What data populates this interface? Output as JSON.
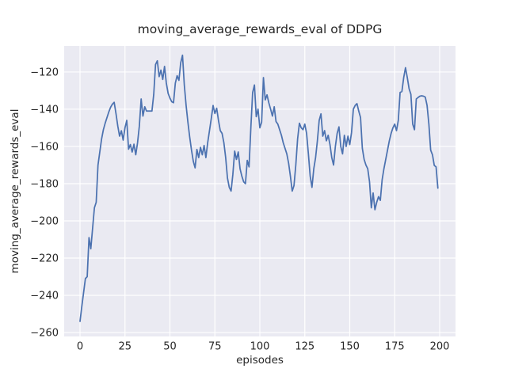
{
  "figure": {
    "title": "moving_average_rewards_eval of DDPG",
    "xlabel": "episodes",
    "ylabel": "moving_average_rewards_eval"
  },
  "chart_data": {
    "type": "line",
    "title": "moving_average_rewards_eval of DDPG",
    "xlabel": "episodes",
    "ylabel": "moving_average_rewards_eval",
    "legend": "none",
    "grid": true,
    "style": "seaborn-darkgrid",
    "background_color": "#eaeaf2",
    "grid_color": "#ffffff",
    "line_color": "#4c72b0",
    "text_color": "#262626",
    "xlim": [
      -8.81,
      208.81
    ],
    "ylim": [
      -262.1,
      -106.0
    ],
    "x_ticks": [
      0,
      25,
      50,
      75,
      100,
      125,
      150,
      175,
      200
    ],
    "x_tick_labels": [
      "0",
      "25",
      "50",
      "75",
      "100",
      "125",
      "150",
      "175",
      "200"
    ],
    "y_ticks": [
      -120,
      -140,
      -160,
      -180,
      -200,
      -220,
      -240,
      -260
    ],
    "y_tick_labels": [
      "−120",
      "−140",
      "−160",
      "−180",
      "−200",
      "−220",
      "−240",
      "−260"
    ],
    "series": [
      {
        "name": "moving_average_rewards_eval",
        "x_start": 0,
        "x_step": 1,
        "values": [
          -254,
          -246,
          -238.5,
          -231,
          -230,
          -209,
          -215,
          -204,
          -193,
          -190,
          -170,
          -163,
          -156,
          -151,
          -147.5,
          -144.5,
          -141.5,
          -139,
          -137.3,
          -136.3,
          -142.3,
          -149,
          -154.5,
          -151.6,
          -156.6,
          -150,
          -146,
          -161.5,
          -159,
          -163,
          -158.8,
          -164.5,
          -158,
          -149,
          -134.5,
          -143.7,
          -138.7,
          -141,
          -141,
          -141,
          -141,
          -132,
          -116,
          -114,
          -122.5,
          -119,
          -124,
          -117,
          -126,
          -131.5,
          -134,
          -136,
          -136.5,
          -126,
          -122,
          -124.5,
          -115,
          -111,
          -127,
          -138,
          -147,
          -155,
          -162,
          -168,
          -171.5,
          -161.6,
          -166,
          -160.5,
          -164.5,
          -159.5,
          -166,
          -158,
          -151.5,
          -145,
          -138,
          -142.3,
          -139.5,
          -146,
          -151.5,
          -153,
          -158,
          -166,
          -177,
          -182,
          -184,
          -175,
          -162.5,
          -167,
          -163,
          -172,
          -176,
          -179,
          -180,
          -167.5,
          -171,
          -150,
          -131,
          -127,
          -144,
          -140,
          -150,
          -147,
          -123,
          -135,
          -132.3,
          -136.6,
          -140,
          -143.7,
          -138.7,
          -146.6,
          -148,
          -151,
          -154,
          -158,
          -161,
          -164,
          -169,
          -176,
          -184,
          -181,
          -170,
          -156,
          -147.5,
          -150,
          -151,
          -148,
          -153,
          -164,
          -176,
          -182,
          -172,
          -166,
          -157,
          -146,
          -142.5,
          -154.5,
          -151.5,
          -157,
          -154,
          -159,
          -166,
          -170,
          -160,
          -153,
          -149.5,
          -160,
          -164,
          -154,
          -160,
          -154.5,
          -159,
          -152.5,
          -140,
          -138,
          -137,
          -141,
          -144.5,
          -161,
          -167,
          -170,
          -172,
          -179,
          -193,
          -185,
          -194,
          -190,
          -187,
          -189,
          -178,
          -172,
          -167,
          -162,
          -157,
          -153,
          -150,
          -148,
          -151.5,
          -146,
          -131,
          -130.5,
          -123,
          -117.7,
          -123,
          -129,
          -132,
          -148,
          -151,
          -134.5,
          -133.7,
          -133,
          -132.8,
          -133,
          -133.5,
          -138,
          -148,
          -162,
          -164.5,
          -170.2,
          -171,
          -182.4
        ]
      }
    ]
  }
}
